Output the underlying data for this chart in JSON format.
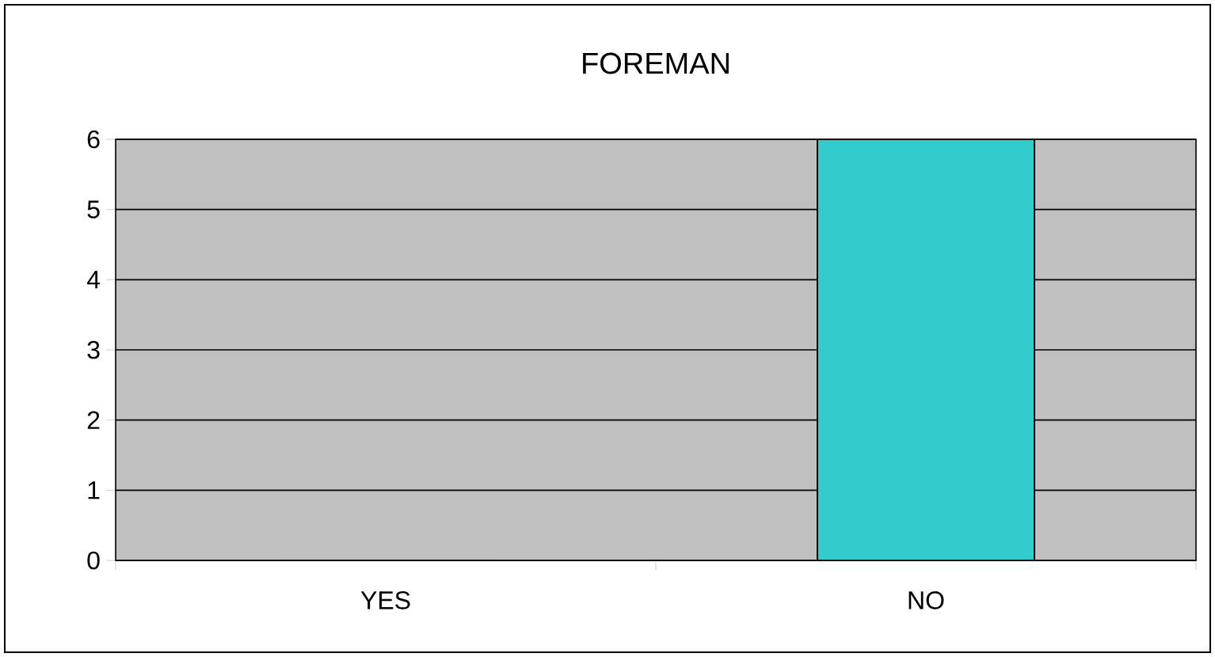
{
  "chart_data": {
    "type": "bar",
    "title": "FOREMAN",
    "categories": [
      "YES",
      "NO"
    ],
    "values": [
      0,
      6
    ],
    "color": "#33cccc",
    "ylim": [
      0,
      6
    ],
    "yticks": [
      0,
      1,
      2,
      3,
      4,
      5,
      6
    ],
    "grid": "y"
  }
}
